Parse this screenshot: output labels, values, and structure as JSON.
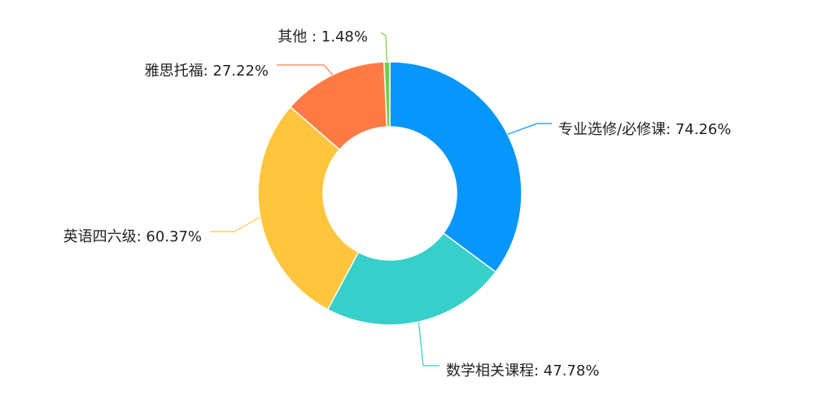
{
  "chart_data": {
    "type": "pie",
    "donut": true,
    "title": "",
    "legend": "none",
    "slices": [
      {
        "name": "专业选修/必修课",
        "value": 74.26,
        "percent_label": "74.26%",
        "color": "#0696fc"
      },
      {
        "name": "数学相关课程",
        "value": 47.78,
        "percent_label": "47.78%",
        "color": "#36cfc9"
      },
      {
        "name": "英语四六级",
        "value": 60.37,
        "percent_label": "60.37%",
        "color": "#ffc53d"
      },
      {
        "name": "雅思托福",
        "value": 27.22,
        "percent_label": "27.22%",
        "color": "#ff7a45"
      },
      {
        "name": "其他 ",
        "value": 1.48,
        "percent_label": "1.48%",
        "color": "#73d13d"
      }
    ]
  }
}
